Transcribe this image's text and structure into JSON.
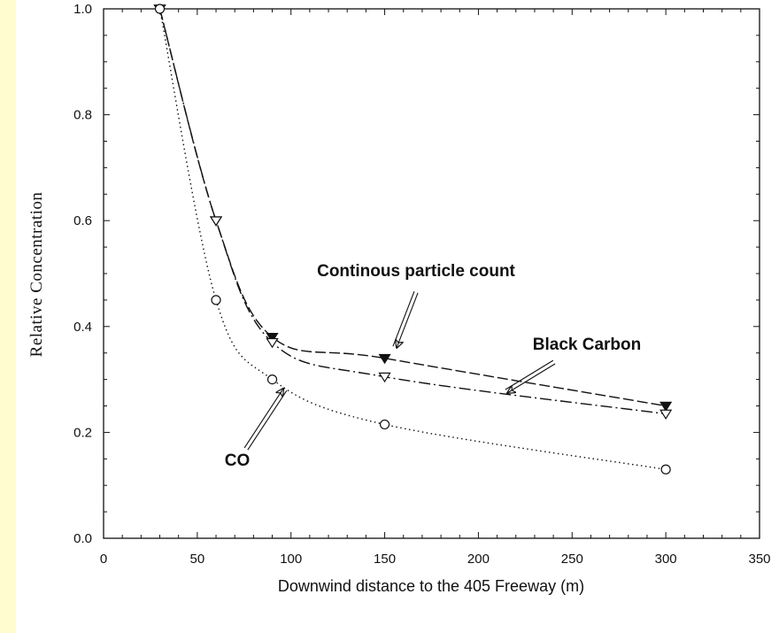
{
  "chart_data": {
    "type": "line",
    "title": "",
    "xlabel": "Downwind distance to the 405 Freeway (m)",
    "ylabel": "Relative Concentration",
    "xlim": [
      0,
      350
    ],
    "ylim": [
      0.0,
      1.0
    ],
    "xticks": [
      0,
      50,
      100,
      150,
      200,
      250,
      300,
      350
    ],
    "yticks": [
      "0.0",
      "0.2",
      "0.4",
      "0.6",
      "0.8",
      "1.0"
    ],
    "grid": false,
    "series": [
      {
        "name": "CO",
        "marker": "circle",
        "line": "dotted",
        "x": [
          30,
          60,
          90,
          150,
          300
        ],
        "y": [
          1.0,
          0.45,
          0.3,
          0.215,
          0.13
        ]
      },
      {
        "name": "Continous particle count",
        "marker": "triangle-filled",
        "line": "dashed",
        "x": [
          30,
          60,
          90,
          150,
          300
        ],
        "y": [
          1.0,
          0.6,
          0.38,
          0.34,
          0.25
        ]
      },
      {
        "name": "Black Carbon",
        "marker": "triangle-open",
        "line": "dash-dot",
        "x": [
          30,
          60,
          90,
          150,
          300
        ],
        "y": [
          1.0,
          0.6,
          0.37,
          0.305,
          0.235
        ]
      }
    ],
    "annotations": [
      {
        "series": "Continous particle count",
        "text": "Continous particle count"
      },
      {
        "series": "Black Carbon",
        "text": "Black Carbon"
      },
      {
        "series": "CO",
        "text": "CO"
      }
    ]
  }
}
